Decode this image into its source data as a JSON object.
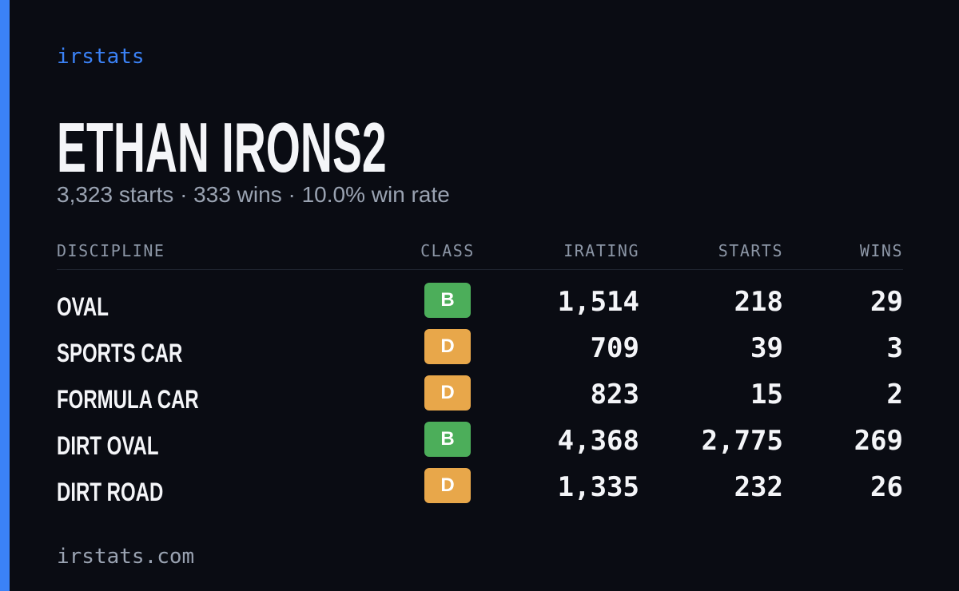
{
  "brand": "irstats",
  "title": "ETHAN IRONS2",
  "subtitle": "3,323 starts · 333 wins · 10.0% win rate",
  "table": {
    "header": [
      "DISCIPLINE",
      "CLASS",
      "IRATING",
      "STARTS",
      "WINS"
    ],
    "rows": [
      [
        "OVAL",
        "B",
        "1,514",
        "218",
        "29"
      ],
      [
        "SPORTS CAR",
        "D",
        "709",
        "39",
        "3"
      ],
      [
        "FORMULA CAR",
        "D",
        "823",
        "15",
        "2"
      ],
      [
        "DIRT OVAL",
        "B",
        "4,368",
        "2,775",
        "269"
      ],
      [
        "DIRT ROAD",
        "D",
        "1,335",
        "232",
        "26"
      ]
    ],
    "class_colors": {
      "B": "#4cae5a",
      "D": "#e8a74a"
    }
  },
  "footer": "irstats.com"
}
